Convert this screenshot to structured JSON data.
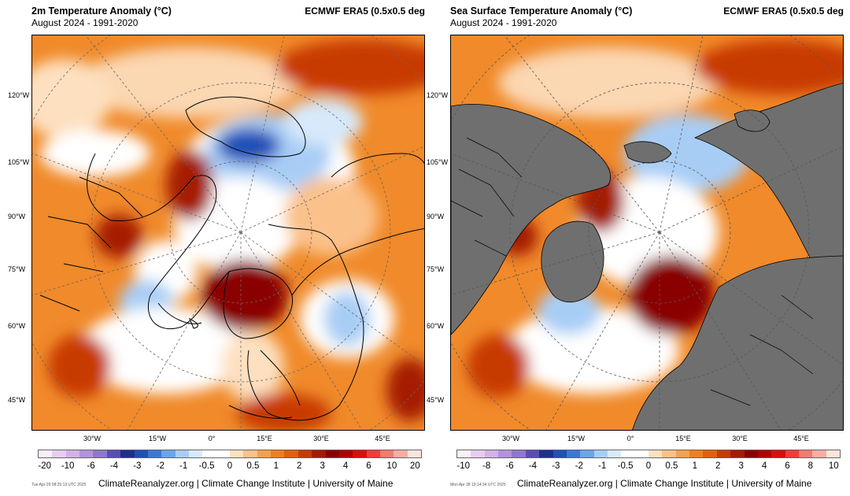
{
  "panels": [
    {
      "title": "2m Temperature Anomaly (°C)",
      "subtitle": "August 2024 - 1991-2020",
      "source": "ECMWF ERA5 (0.5x0.5 deg",
      "lat_labels": [
        "120°W",
        "105°W",
        "90°W",
        "75°W",
        "60°W",
        "45°W"
      ],
      "lon_labels": [
        "30°W",
        "15°W",
        "0°",
        "15°E",
        "30°E",
        "45°E"
      ],
      "colorbar": {
        "ticks": [
          "-20",
          "-10",
          "-6",
          "-4",
          "-3",
          "-2",
          "-1",
          "-0.5",
          "0",
          "0.5",
          "1",
          "2",
          "3",
          "4",
          "6",
          "10",
          "20"
        ],
        "colors": [
          "#fbeefb",
          "#e7cdee",
          "#d3b1e6",
          "#b393da",
          "#8f78cc",
          "#5a4cb8",
          "#1d2f8e",
          "#1f4fb8",
          "#3b78d6",
          "#6da4ea",
          "#a8cdf5",
          "#d7e9fb",
          "#ffffff",
          "#ffffff",
          "#fde0c0",
          "#fbc18a",
          "#f5a14d",
          "#ef7f1c",
          "#e36009",
          "#c83a05",
          "#a51a03",
          "#8a0000",
          "#b00000",
          "#d80f0f",
          "#f03c3c",
          "#f57a70",
          "#f9ada3",
          "#fde4dc"
        ]
      },
      "stamp": "Tue Apr 29 08:25:13 UTC 2025",
      "credit": "ClimateReanalyzer.org | Climate Change Institute | University of Maine"
    },
    {
      "title": "Sea Surface Temperature Anomaly (°C)",
      "subtitle": "August 2024 - 1991-2020",
      "source": "ECMWF ERA5 (0.5x0.5 deg",
      "lat_labels": [
        "120°W",
        "105°W",
        "90°W",
        "75°W",
        "60°W",
        "45°W"
      ],
      "lon_labels": [
        "30°W",
        "15°W",
        "0°",
        "15°E",
        "30°E",
        "45°E"
      ],
      "colorbar": {
        "ticks": [
          "-10",
          "-8",
          "-6",
          "-4",
          "-3",
          "-2",
          "-1",
          "-0.5",
          "0",
          "0.5",
          "1",
          "2",
          "3",
          "4",
          "6",
          "8",
          "10"
        ],
        "colors": [
          "#fbeefb",
          "#e7cdee",
          "#d3b1e6",
          "#b393da",
          "#8f78cc",
          "#5a4cb8",
          "#1d2f8e",
          "#1f4fb8",
          "#3b78d6",
          "#6da4ea",
          "#a8cdf5",
          "#d7e9fb",
          "#ffffff",
          "#ffffff",
          "#fde0c0",
          "#fbc18a",
          "#f5a14d",
          "#ef7f1c",
          "#e36009",
          "#c83a05",
          "#a51a03",
          "#8a0000",
          "#b00000",
          "#d80f0f",
          "#f03c3c",
          "#f57a70",
          "#f9ada3",
          "#fde4dc"
        ]
      },
      "stamp": "Mon Apr 28 19:14:34 UTC 2025",
      "credit": "ClimateReanalyzer.org | Climate Change Institute | University of Maine"
    }
  ],
  "colors": {
    "land_mask": "#6f6f6f",
    "anomaly_warm": "#ef7f1c",
    "anomaly_hot": "#a51a03",
    "anomaly_cool": "#a8cdf5",
    "anomaly_cold": "#1f4fb8",
    "neutral": "#ffffff"
  }
}
